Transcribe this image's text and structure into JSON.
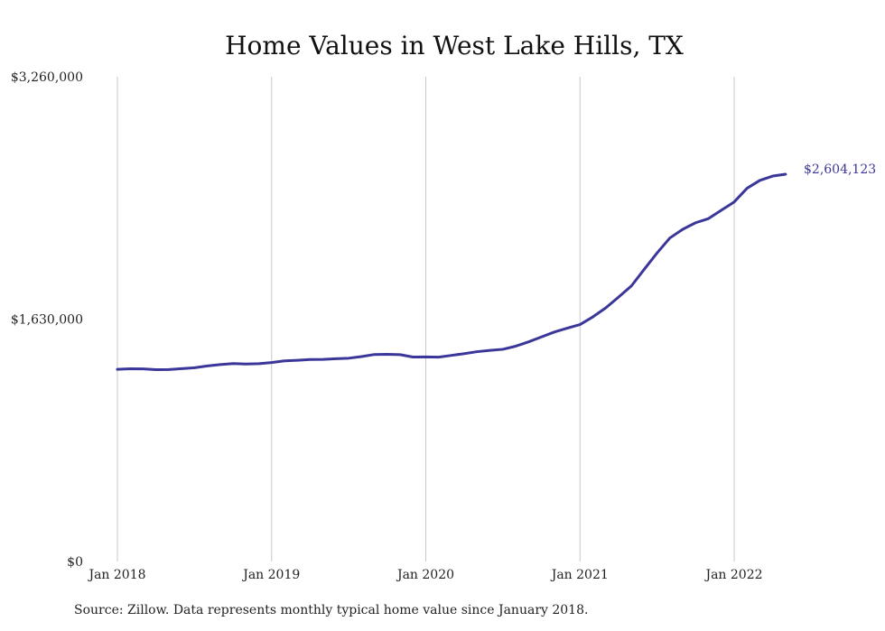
{
  "chart_data": {
    "type": "line",
    "title": "Home Values in West Lake Hills, TX",
    "xlabel": "",
    "ylabel": "",
    "ylim": [
      0,
      3260000
    ],
    "xlim": [
      "2018-01",
      "2022-05"
    ],
    "y_ticks": [
      "$3,260,000",
      "$1,630,000",
      "$0"
    ],
    "y_tick_values": [
      3260000,
      1630000,
      0
    ],
    "x_ticks": [
      "Jan 2018",
      "Jan 2019",
      "Jan 2020",
      "Jan 2021",
      "Jan 2022"
    ],
    "x_tick_values": [
      "2018-01",
      "2019-01",
      "2020-01",
      "2021-01",
      "2022-01"
    ],
    "grid": "vertical",
    "line_color": "#3b3699",
    "end_label": "$2,604,123",
    "series": [
      {
        "name": "",
        "x": [
          "2018-01",
          "2018-02",
          "2018-03",
          "2018-04",
          "2018-05",
          "2018-06",
          "2018-07",
          "2018-08",
          "2018-09",
          "2018-10",
          "2018-11",
          "2018-12",
          "2019-01",
          "2019-02",
          "2019-03",
          "2019-04",
          "2019-05",
          "2019-06",
          "2019-07",
          "2019-08",
          "2019-09",
          "2019-10",
          "2019-11",
          "2019-12",
          "2020-01",
          "2020-02",
          "2020-03",
          "2020-04",
          "2020-05",
          "2020-06",
          "2020-07",
          "2020-08",
          "2020-09",
          "2020-10",
          "2020-11",
          "2020-12",
          "2021-01",
          "2021-02",
          "2021-03",
          "2021-04",
          "2021-05",
          "2021-06",
          "2021-07",
          "2021-08",
          "2021-09",
          "2021-10",
          "2021-11",
          "2021-12",
          "2022-01",
          "2022-02",
          "2022-03",
          "2022-04",
          "2022-05"
        ],
        "values": [
          1292000,
          1296000,
          1295000,
          1290000,
          1291000,
          1297000,
          1303000,
          1315000,
          1324000,
          1331000,
          1328000,
          1330000,
          1338000,
          1349000,
          1353000,
          1358000,
          1359000,
          1364000,
          1367000,
          1378000,
          1392000,
          1393000,
          1391000,
          1375000,
          1376000,
          1374000,
          1386000,
          1398000,
          1411000,
          1420000,
          1427000,
          1448000,
          1477000,
          1510000,
          1543000,
          1569000,
          1593000,
          1645000,
          1705000,
          1778000,
          1853000,
          1965000,
          2075000,
          2176000,
          2234000,
          2278000,
          2306000,
          2362000,
          2418000,
          2510000,
          2563000,
          2592000,
          2604123
        ]
      }
    ]
  },
  "source_text": "Source: Zillow. Data represents monthly typical home value since January 2018."
}
